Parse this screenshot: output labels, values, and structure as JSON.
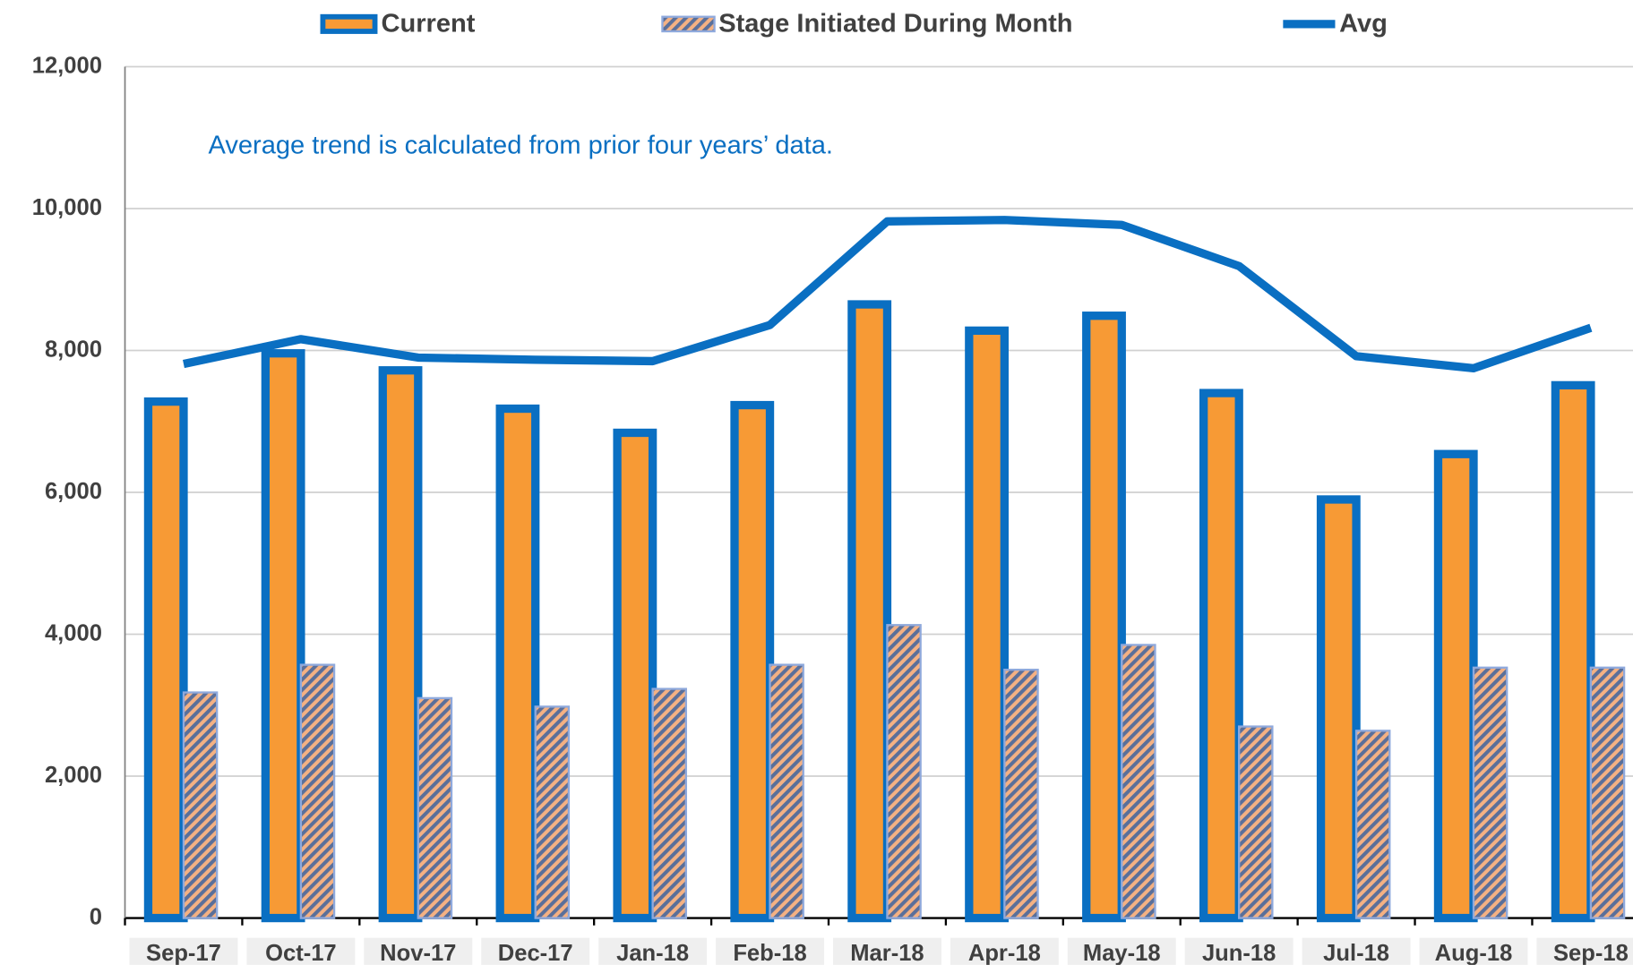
{
  "chart_data": {
    "type": "bar",
    "annotation": "Average trend is calculated from prior four years’ data.",
    "categories": [
      "Sep-17",
      "Oct-17",
      "Nov-17",
      "Dec-17",
      "Jan-18",
      "Feb-18",
      "Mar-18",
      "Apr-18",
      "May-18",
      "Jun-18",
      "Jul-18",
      "Aug-18",
      "Sep-18"
    ],
    "series": [
      {
        "name": "Current",
        "color": "#f79a35",
        "values": [
          7280,
          7960,
          7720,
          7180,
          6840,
          7230,
          8650,
          8280,
          8490,
          7400,
          5900,
          6540,
          7510
        ]
      },
      {
        "name": "Stage Initiated During Month",
        "color": "#f4b183",
        "values": [
          3180,
          3570,
          3100,
          2980,
          3230,
          3570,
          4130,
          3500,
          3850,
          2700,
          2640,
          3530,
          3530
        ]
      },
      {
        "name": "Avg",
        "type": "line",
        "color": "#0a6fc2",
        "values": [
          7810,
          8160,
          7900,
          7870,
          7850,
          8360,
          9820,
          9840,
          9770,
          9190,
          7920,
          7750,
          8320
        ]
      }
    ],
    "ylim": [
      0,
      12000
    ],
    "yticks": [
      0,
      {
        "value": 2000,
        "label": "2,000"
      },
      {
        "value": 4000,
        "label": "4,000"
      },
      {
        "value": 6000,
        "label": "6,000"
      },
      {
        "value": 8000,
        "label": "8,000"
      },
      {
        "value": 10000,
        "label": "10,000"
      },
      {
        "value": 12000,
        "label": "12,000"
      }
    ],
    "grid": true
  }
}
